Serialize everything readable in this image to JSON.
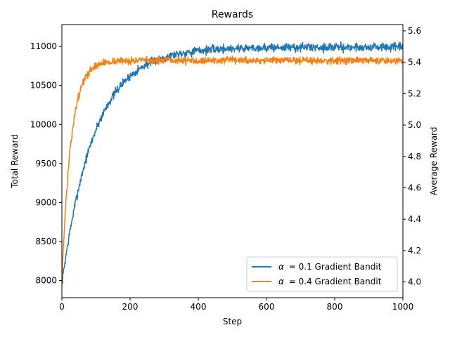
{
  "chart_data": {
    "type": "line",
    "title": "Rewards",
    "xlabel": "Step",
    "ylabel_left": "Total Reward",
    "ylabel_right": "Average Reward",
    "xlim": [
      0,
      1000
    ],
    "ylim_left": [
      7780,
      11280
    ],
    "ylim_right": [
      3.9,
      5.64
    ],
    "x_ticks": [
      0,
      200,
      400,
      600,
      800,
      1000
    ],
    "y_ticks_left": [
      8000,
      8500,
      9000,
      9500,
      10000,
      10500,
      11000
    ],
    "y_ticks_right": [
      4.0,
      4.2,
      4.4,
      4.6,
      4.8,
      5.0,
      5.2,
      5.4,
      5.6
    ],
    "grid": false,
    "legend_position": "lower-right",
    "series": [
      {
        "name": "α = 0.1 Gradient Bandit",
        "label_prefix": "α",
        "label_value": "= 0.1 Gradient Bandit",
        "color": "#1f77b4",
        "curve": {
          "start": 7960,
          "plateau": 10990,
          "time_constant": 95,
          "noise_amplitude": 55,
          "seed": 7
        },
        "x": [
          0,
          20,
          40,
          60,
          80,
          100,
          120,
          150,
          200,
          250,
          300,
          400,
          500,
          600,
          700,
          800,
          900,
          1000
        ],
        "values": [
          7960,
          8250,
          8650,
          9150,
          9600,
          9950,
          10250,
          10500,
          10750,
          10850,
          10900,
          10950,
          10960,
          10980,
          10990,
          10990,
          10990,
          10990
        ]
      },
      {
        "name": "α = 0.4 Gradient Bandit",
        "label_prefix": "α",
        "label_value": "= 0.4 Gradient Bandit",
        "color": "#ff7f0e",
        "curve": {
          "start": 8000,
          "plateau": 10820,
          "time_constant": 27,
          "noise_amplitude": 45,
          "seed": 13
        },
        "x": [
          0,
          10,
          20,
          30,
          40,
          50,
          60,
          80,
          100,
          150,
          200,
          300,
          400,
          600,
          800,
          1000
        ],
        "values": [
          8000,
          8700,
          9300,
          9800,
          10150,
          10350,
          10500,
          10620,
          10680,
          10740,
          10780,
          10800,
          10810,
          10820,
          10820,
          10840
        ]
      }
    ]
  }
}
